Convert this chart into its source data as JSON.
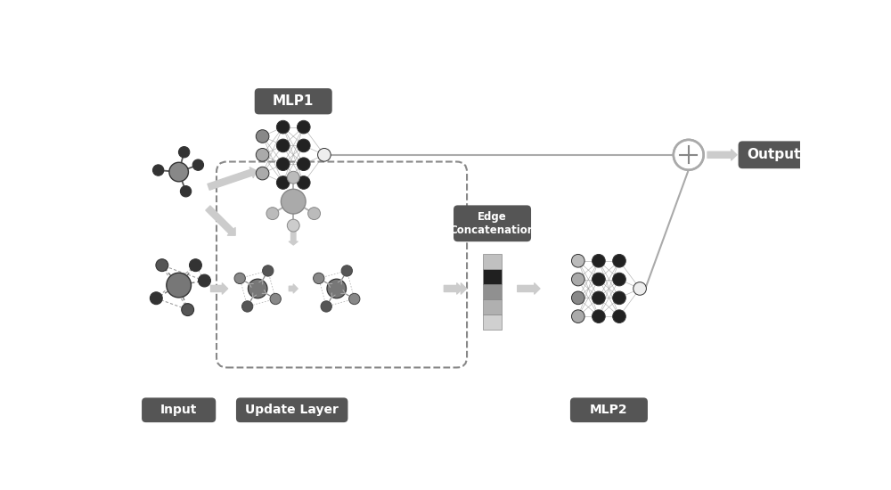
{
  "bg_color": "#ffffff",
  "label_bg": "#555555",
  "label_fg": "#ffffff",
  "node_dark": "#2a2a2a",
  "node_mid": "#888888",
  "node_light": "#bbbbbb",
  "arrow_color": "#cccccc",
  "labels": {
    "mlp1": "MLP1",
    "mlp2": "MLP2",
    "output": "Output",
    "input": "Input",
    "update": "Update Layer",
    "edge_concat": "Edge\nConcatenation"
  }
}
